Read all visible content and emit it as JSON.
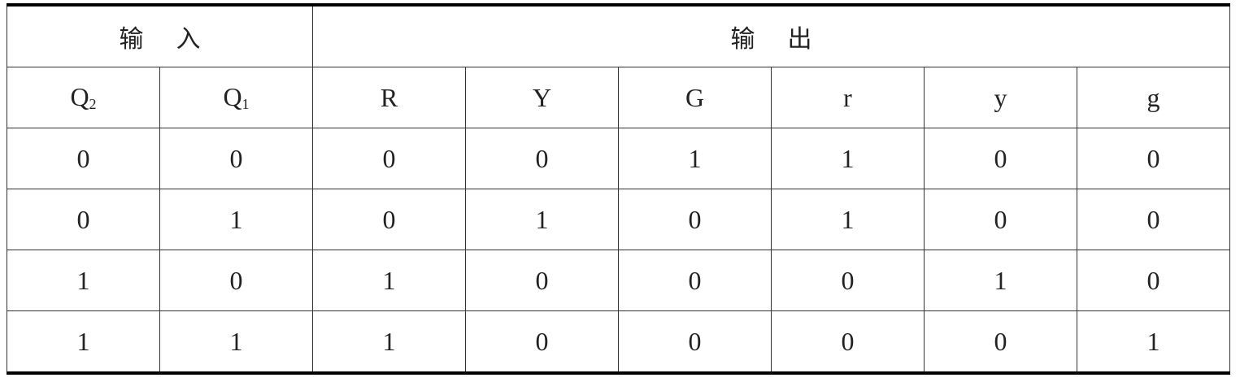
{
  "header": {
    "inputs_label": "输入",
    "outputs_label": "输出",
    "columns": [
      {
        "base": "Q",
        "sub": "2"
      },
      {
        "base": "Q",
        "sub": "1"
      },
      {
        "base": "R",
        "sub": ""
      },
      {
        "base": "Y",
        "sub": ""
      },
      {
        "base": "G",
        "sub": ""
      },
      {
        "base": "r",
        "sub": ""
      },
      {
        "base": "y",
        "sub": ""
      },
      {
        "base": "g",
        "sub": ""
      }
    ]
  },
  "rows": [
    [
      "0",
      "0",
      "0",
      "0",
      "1",
      "1",
      "0",
      "0"
    ],
    [
      "0",
      "1",
      "0",
      "1",
      "0",
      "1",
      "0",
      "0"
    ],
    [
      "1",
      "0",
      "1",
      "0",
      "0",
      "0",
      "1",
      "0"
    ],
    [
      "1",
      "1",
      "1",
      "0",
      "0",
      "0",
      "0",
      "1"
    ]
  ]
}
